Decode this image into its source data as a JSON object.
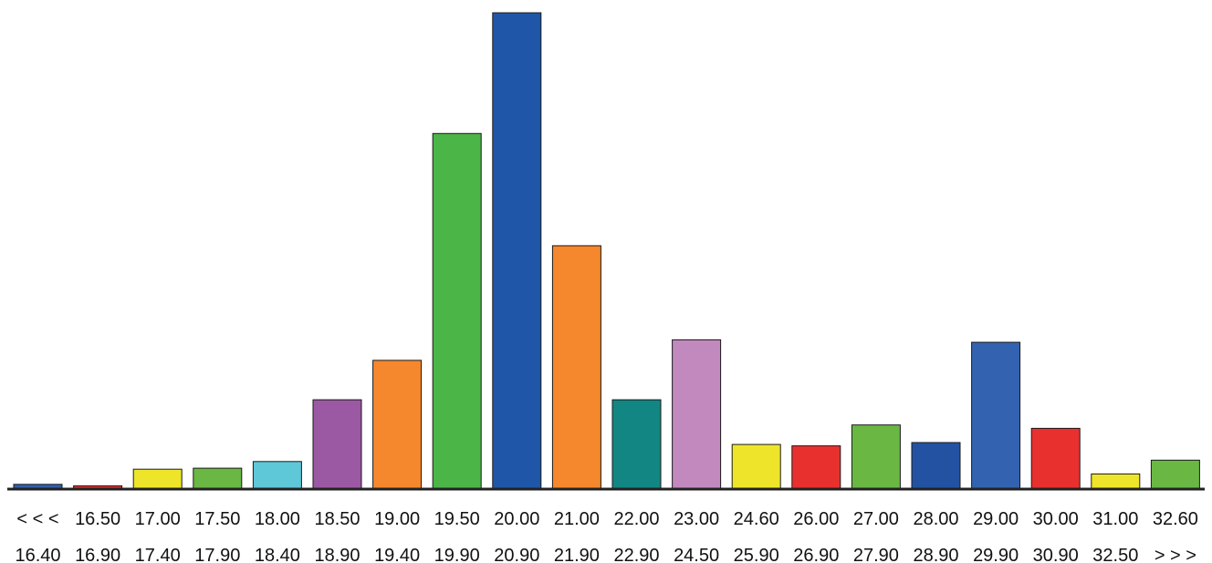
{
  "chart_data": {
    "type": "bar",
    "title": "",
    "xlabel": "",
    "ylabel": "",
    "ylim": [
      0,
      100
    ],
    "grid": false,
    "legend": "none",
    "categories": [
      {
        "top": "< < <",
        "bottom": "16.40"
      },
      {
        "top": "16.50",
        "bottom": "16.90"
      },
      {
        "top": "17.00",
        "bottom": "17.40"
      },
      {
        "top": "17.50",
        "bottom": "17.90"
      },
      {
        "top": "18.00",
        "bottom": "18.40"
      },
      {
        "top": "18.50",
        "bottom": "18.90"
      },
      {
        "top": "19.00",
        "bottom": "19.40"
      },
      {
        "top": "19.50",
        "bottom": "19.90"
      },
      {
        "top": "20.00",
        "bottom": "20.90"
      },
      {
        "top": "21.00",
        "bottom": "21.90"
      },
      {
        "top": "22.00",
        "bottom": "22.90"
      },
      {
        "top": "23.00",
        "bottom": "24.50"
      },
      {
        "top": "24.60",
        "bottom": "25.90"
      },
      {
        "top": "26.00",
        "bottom": "26.90"
      },
      {
        "top": "27.00",
        "bottom": "27.90"
      },
      {
        "top": "28.00",
        "bottom": "28.90"
      },
      {
        "top": "29.00",
        "bottom": "29.90"
      },
      {
        "top": "30.00",
        "bottom": "30.90"
      },
      {
        "top": "31.00",
        "bottom": "32.50"
      },
      {
        "top": "32.60",
        "bottom": "> > >"
      }
    ],
    "values": [
      0.8,
      0.5,
      4.0,
      4.2,
      5.6,
      18.6,
      26.9,
      74.6,
      100.0,
      51.0,
      18.6,
      31.2,
      9.2,
      8.9,
      13.3,
      9.6,
      30.7,
      12.6,
      3.0,
      5.9
    ],
    "colors": [
      "#2f5fae",
      "#e8312e",
      "#eee52a",
      "#6ab744",
      "#5ec7d8",
      "#9b59a3",
      "#f5872c",
      "#4bb548",
      "#1f56a8",
      "#f5872c",
      "#128682",
      "#c189be",
      "#eee52a",
      "#e8312e",
      "#6ab744",
      "#2352a3",
      "#3363b0",
      "#e8312e",
      "#eee52a",
      "#6ab744"
    ]
  }
}
